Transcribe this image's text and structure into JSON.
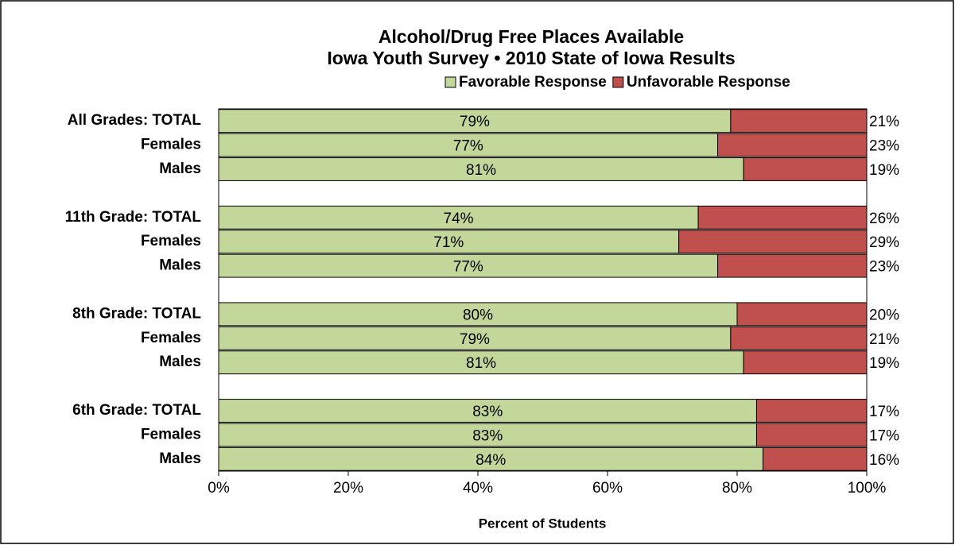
{
  "chart_data": {
    "type": "stacked_barh",
    "title": "Alcohol/Drug Free Places Available",
    "subtitle": "Iowa Youth Survey • 2010 State of Iowa Results",
    "x_label": "Percent of Students",
    "categories": [
      "All Grades: TOTAL",
      "Females",
      "Males",
      null,
      "11th Grade: TOTAL",
      "Females",
      "Males",
      null,
      "8th Grade: TOTAL",
      "Females",
      "Males",
      null,
      "6th Grade: TOTAL",
      "Females",
      "Males"
    ],
    "series": [
      {
        "name": "Favorable Response",
        "color": "#c4d79b",
        "values": [
          79,
          77,
          81,
          null,
          74,
          71,
          77,
          null,
          80,
          79,
          81,
          null,
          83,
          83,
          84
        ],
        "value_labels": [
          "79%",
          "77%",
          "81%",
          null,
          "74%",
          "71%",
          "77%",
          null,
          "80%",
          "79%",
          "81%",
          null,
          "83%",
          "83%",
          "84%"
        ]
      },
      {
        "name": "Unfavorable Response",
        "color": "#c0504d",
        "values": [
          21,
          23,
          19,
          null,
          26,
          29,
          23,
          null,
          20,
          21,
          19,
          null,
          17,
          17,
          16
        ],
        "value_labels": [
          "21%",
          "23%",
          "19%",
          null,
          "26%",
          "29%",
          "23%",
          null,
          "20%",
          "21%",
          "19%",
          null,
          "17%",
          "17%",
          "16%"
        ]
      }
    ],
    "xlim": [
      0,
      100
    ],
    "xticks": [
      {
        "value": 0,
        "label": "0%"
      },
      {
        "value": 20,
        "label": "20%"
      },
      {
        "value": 40,
        "label": "40%"
      },
      {
        "value": 60,
        "label": "60%"
      },
      {
        "value": 80,
        "label": "80%"
      },
      {
        "value": 100,
        "label": "100%"
      }
    ],
    "grid": false,
    "legend": "top"
  }
}
